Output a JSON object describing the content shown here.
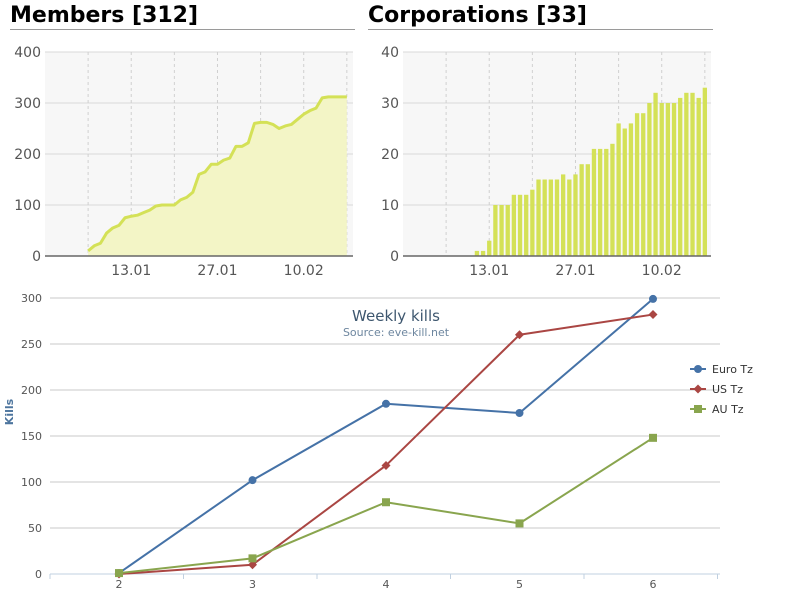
{
  "colors": {
    "members_line": "#d4e157",
    "members_fill": "#f3f5c6",
    "bar": "#d4e157",
    "euro": "#4572a7",
    "us": "#aa4643",
    "au": "#89a54e"
  },
  "members": {
    "title": "Members [312]",
    "chart_data": {
      "type": "area",
      "title": "Members [312]",
      "ylim": [
        0,
        400
      ],
      "yticks": [
        "0",
        "100",
        "200",
        "300",
        "400"
      ],
      "xticks": [
        {
          "label": "13.01",
          "day": 13
        },
        {
          "label": "27.01",
          "day": 27
        },
        {
          "label": "10.02",
          "day": 41
        }
      ],
      "xlim": [
        -1,
        49
      ],
      "x": [
        6,
        7,
        8,
        9,
        10,
        11,
        12,
        13,
        14,
        15,
        16,
        17,
        18,
        19,
        20,
        21,
        22,
        23,
        24,
        25,
        26,
        27,
        28,
        29,
        30,
        31,
        32,
        33,
        34,
        35,
        36,
        37,
        38,
        39,
        40,
        41,
        42,
        43,
        44,
        45,
        46,
        47,
        48
      ],
      "values": [
        10,
        20,
        25,
        45,
        55,
        60,
        75,
        78,
        80,
        85,
        90,
        98,
        100,
        100,
        100,
        110,
        115,
        125,
        160,
        165,
        180,
        180,
        188,
        192,
        215,
        215,
        222,
        260,
        262,
        262,
        258,
        250,
        255,
        258,
        268,
        278,
        285,
        290,
        310,
        312,
        312,
        312,
        312
      ]
    }
  },
  "corporations": {
    "title": "Corporations [33]",
    "chart_data": {
      "type": "bar",
      "title": "Corporations [33]",
      "ylim": [
        0,
        40
      ],
      "yticks": [
        "0",
        "10",
        "20",
        "30",
        "40"
      ],
      "xticks": [
        {
          "label": "13.01",
          "day": 13
        },
        {
          "label": "27.01",
          "day": 27
        },
        {
          "label": "10.02",
          "day": 41
        }
      ],
      "xlim": [
        -1,
        49
      ],
      "x": [
        11,
        12,
        13,
        14,
        15,
        16,
        17,
        18,
        19,
        20,
        21,
        22,
        23,
        24,
        25,
        26,
        27,
        28,
        29,
        30,
        31,
        32,
        33,
        34,
        35,
        36,
        37,
        38,
        39,
        40,
        41,
        42,
        43,
        44,
        45,
        46,
        47,
        48
      ],
      "values": [
        1,
        1,
        3,
        10,
        10,
        10,
        12,
        12,
        12,
        13,
        15,
        15,
        15,
        15,
        16,
        15,
        16,
        18,
        18,
        21,
        21,
        21,
        22,
        26,
        25,
        26,
        28,
        28,
        30,
        32,
        30,
        30,
        30,
        31,
        32,
        32,
        31,
        33
      ]
    }
  },
  "weekly": {
    "chart_data": {
      "type": "line",
      "title": "Weekly kills",
      "subtitle": "Source: eve-kill.net",
      "ylabel": "Kills",
      "xlabel": "",
      "categories": [
        "2",
        "3",
        "4",
        "5",
        "6"
      ],
      "ylim": [
        0,
        300
      ],
      "yticks": [
        "0",
        "50",
        "100",
        "150",
        "200",
        "250",
        "300"
      ],
      "series": [
        {
          "name": "Euro Tz",
          "marker": "circle",
          "values": [
            1,
            102,
            185,
            175,
            299
          ]
        },
        {
          "name": "US Tz",
          "marker": "diamond",
          "values": [
            0,
            10,
            118,
            260,
            282
          ]
        },
        {
          "name": "AU Tz",
          "marker": "square",
          "values": [
            1,
            17,
            78,
            55,
            148
          ]
        }
      ]
    }
  }
}
